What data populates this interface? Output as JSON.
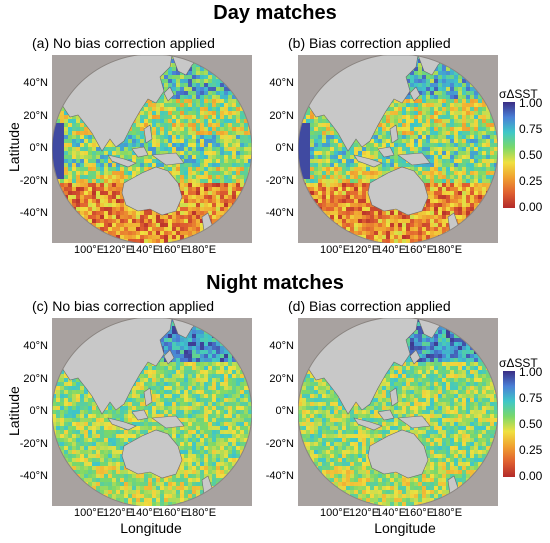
{
  "titles": {
    "day": "Day matches",
    "night": "Night matches"
  },
  "panels": [
    {
      "id": "a",
      "label": "(a) No bias correction applied"
    },
    {
      "id": "b",
      "label": "(b) Bias correction applied"
    },
    {
      "id": "c",
      "label": "(c) No bias correction applied"
    },
    {
      "id": "d",
      "label": "(d) Bias correction applied"
    }
  ],
  "axes": {
    "ylabel": "Latitude",
    "xlabel": "Longitude",
    "lat_ticks": [
      "40°N",
      "20°N",
      "0°N",
      "-20°N",
      "-40°N"
    ],
    "lon_ticks": [
      "100°E",
      "120°E",
      "140°E",
      "160°E",
      "180°E"
    ]
  },
  "colorbar": {
    "title": "σΔSST",
    "ticks": [
      "1.00",
      "0.75",
      "0.50",
      "0.25",
      "0.00"
    ],
    "colors": [
      "#3a2d84",
      "#4a7fd6",
      "#3fc7c8",
      "#7ad86a",
      "#f0e040",
      "#f0a030",
      "#e06030",
      "#b22a2a"
    ]
  },
  "map_colors": {
    "background": "#a8a2a0",
    "land": "#c8c8c8",
    "coast": "#6a6a6a"
  }
}
